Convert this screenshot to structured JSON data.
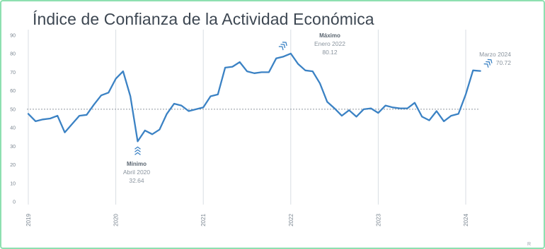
{
  "chart_data": {
    "type": "line",
    "title": "Índice de Confianza de la Actividad Económica",
    "xlabel": "",
    "ylabel": "",
    "ylim": [
      0,
      90
    ],
    "yticks": [
      "0",
      "10",
      "20",
      "30",
      "40",
      "50",
      "60",
      "70",
      "80",
      "90"
    ],
    "xticks": [
      "2019",
      "2020",
      "2021",
      "2022",
      "2023",
      "2024"
    ],
    "reference_line": 50,
    "grid": "vertical",
    "line_color": "#3b82c4",
    "series": [
      {
        "values": [
          47.5,
          43.5,
          44.5,
          45,
          46.5,
          37.5,
          42,
          46.5,
          47,
          52.5,
          57.5,
          59,
          66.5,
          70.5,
          57,
          32.64,
          38.5,
          36.5,
          39,
          47.5,
          53,
          52,
          49,
          50,
          51,
          57,
          58,
          72.5,
          73,
          75.5,
          70.5,
          69.5,
          70,
          70,
          77.5,
          78.5,
          80.12,
          74.5,
          71,
          70.5,
          64,
          54,
          50.5,
          46.5,
          49.5,
          46,
          50,
          50.5,
          48,
          52,
          51,
          50.5,
          50.5,
          53.5,
          46,
          44,
          49,
          43.5,
          46.5,
          47.5,
          58,
          71,
          70.72
        ]
      }
    ],
    "annotations": [
      {
        "label": "Mínimo",
        "date": "Abril 2020",
        "value": "32.64"
      },
      {
        "label": "Máximo",
        "date": "Enero 2022",
        "value": "80.12"
      },
      {
        "date": "Marzo 2024",
        "value": "70.72"
      }
    ]
  },
  "footer_mark": "R"
}
